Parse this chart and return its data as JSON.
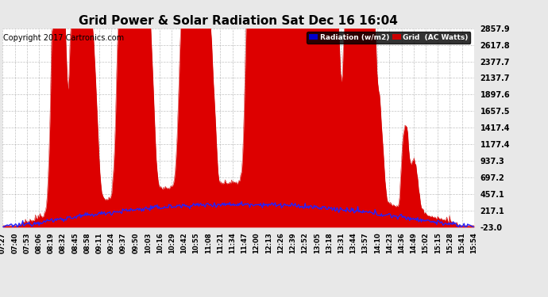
{
  "title": "Grid Power & Solar Radiation Sat Dec 16 16:04",
  "copyright": "Copyright 2017 Cartronics.com",
  "yticks": [
    -23.0,
    217.1,
    457.1,
    697.2,
    937.3,
    1177.4,
    1417.4,
    1657.5,
    1897.6,
    2137.7,
    2377.7,
    2617.8,
    2857.9
  ],
  "ymin": -23.0,
  "ymax": 2857.9,
  "bg_color": "#e8e8e8",
  "plot_bg_color": "#ffffff",
  "grid_color": "#999999",
  "legend_radiation_label": "Radiation (w/m2)",
  "legend_grid_label": "Grid  (AC Watts)",
  "legend_radiation_bg": "#0000cc",
  "legend_grid_bg": "#cc0000",
  "title_fontsize": 11,
  "copyright_fontsize": 7,
  "xtick_labels": [
    "07:27",
    "07:40",
    "07:53",
    "08:06",
    "08:19",
    "08:32",
    "08:45",
    "08:58",
    "09:11",
    "09:24",
    "09:37",
    "09:50",
    "10:03",
    "10:16",
    "10:29",
    "10:42",
    "10:55",
    "11:08",
    "11:21",
    "11:34",
    "11:47",
    "12:00",
    "12:13",
    "12:26",
    "12:39",
    "12:52",
    "13:05",
    "13:18",
    "13:31",
    "13:44",
    "13:57",
    "14:10",
    "14:23",
    "14:36",
    "14:49",
    "15:02",
    "15:15",
    "15:28",
    "15:41",
    "15:54"
  ]
}
